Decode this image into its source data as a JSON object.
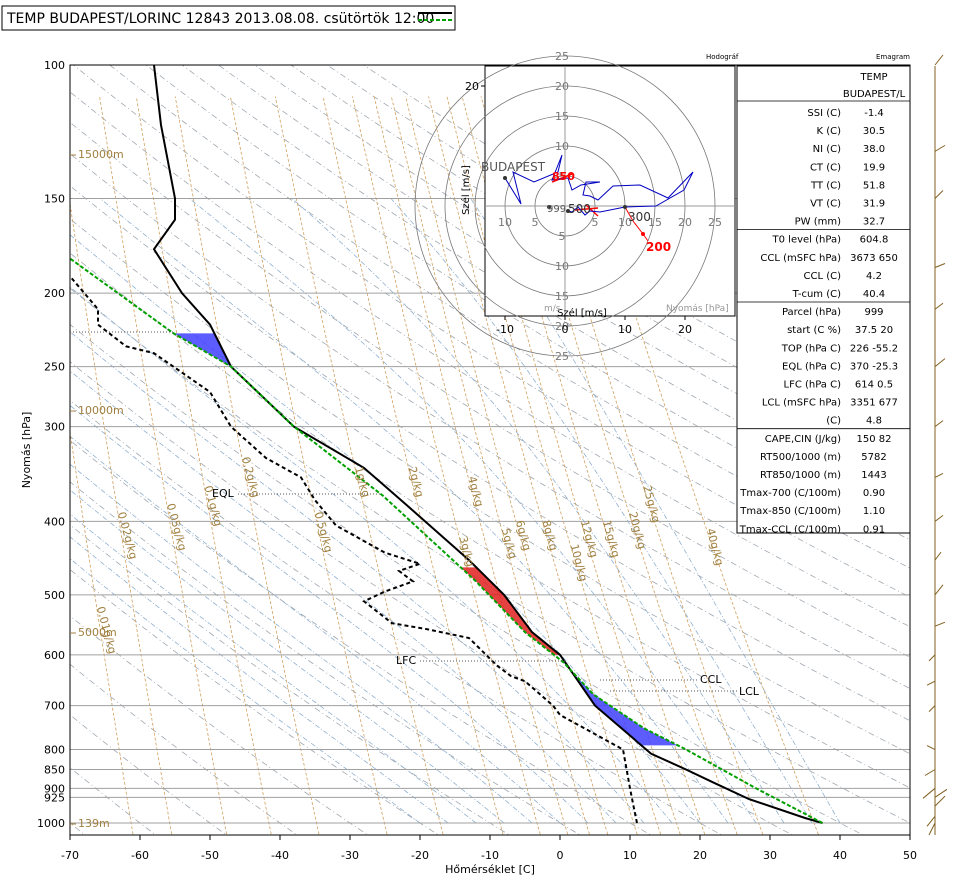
{
  "title": "TEMP BUDAPEST/LORINC 12843 2013.08.08. csütörtök 12:00",
  "axes": {
    "xlabel": "Hőmérséklet [C]",
    "ylabel": "Nyomás [hPa]",
    "x_ticks": [
      "-70",
      "-60",
      "-50",
      "-40",
      "-30",
      "-20",
      "-10",
      "0",
      "10",
      "20",
      "30",
      "40",
      "50"
    ],
    "y_ticks": [
      "100",
      "150",
      "200",
      "250",
      "300",
      "400",
      "500",
      "600",
      "700",
      "800",
      "850",
      "900",
      "925",
      "1000"
    ]
  },
  "height_labels": [
    "15000m",
    "10000m",
    "5000m",
    "139m"
  ],
  "mixing_ratio_labels": [
    "0.01g/kg",
    "0.02g/kg",
    "0.05g/kg",
    "0.1g/kg",
    "0.2g/kg",
    "0.5g/kg",
    "1g/kg",
    "2g/kg",
    "3g/kg",
    "4g/kg",
    "5g/kg",
    "6g/kg",
    "8g/kg",
    "10g/kg",
    "12g/kg",
    "15g/kg",
    "20g/kg",
    "25g/kg",
    "40g/kg"
  ],
  "level_labels": {
    "eql": "EQL",
    "lfc": "LFC",
    "ccl": "CCL",
    "lcl": "LCL"
  },
  "hodograph": {
    "title": "Hodográf",
    "station": "BUDAPEST",
    "y_axis_label": "Szél [m/s]",
    "x_axis_label": "Szél [m/s]",
    "units_label": "m/s",
    "pressure_label": "Nyomás [hPa]",
    "ring_labels": [
      "5",
      "10",
      "15",
      "20",
      "25"
    ],
    "x_ticks": [
      "-10",
      "0",
      "10",
      "20"
    ],
    "y_ticks": [
      "20"
    ],
    "level_marks": [
      "999",
      "500",
      "300",
      "200",
      "850"
    ]
  },
  "emagram_table": {
    "title": "Emagram",
    "header": [
      "TEMP",
      "BUDAPEST/L"
    ],
    "rows": [
      [
        "SSI (C)",
        "-1.4"
      ],
      [
        "K (C)",
        "30.5"
      ],
      [
        "NI (C)",
        "38.0"
      ],
      [
        "CT (C)",
        "19.9"
      ],
      [
        "TT (C)",
        "51.8"
      ],
      [
        "VT (C)",
        "31.9"
      ],
      [
        "PW (mm)",
        "32.7"
      ],
      [
        "T0 level (hPa)",
        "604.8"
      ],
      [
        "CCL (mSFC hPa)",
        "3673 650"
      ],
      [
        "CCL (C)",
        "4.2"
      ],
      [
        "T-cum (C)",
        "40.4"
      ],
      [
        "Parcel (hPa)",
        "999"
      ],
      [
        "start (C %)",
        "37.5 20"
      ],
      [
        "TOP (hPa C)",
        "226 -55.2"
      ],
      [
        "EQL (hPa C)",
        "370 -25.3"
      ],
      [
        "LFC (hPa C)",
        "614 0.5"
      ],
      [
        "LCL (mSFC hPa)",
        "3351 677"
      ],
      [
        "(C)",
        "4.8"
      ],
      [
        "CAPE,CIN (J/kg)",
        "150 82"
      ],
      [
        "RT500/1000 (m)",
        "5782"
      ],
      [
        "RT850/1000 (m)",
        "1443"
      ],
      [
        "Tmax-700 (C/100m)",
        "0.90"
      ],
      [
        "Tmax-850 (C/100m)",
        "1.10"
      ],
      [
        "Tmax-CCL (C/100m)",
        "0.91"
      ]
    ]
  },
  "colors": {
    "temperature": "#000000",
    "dewpoint": "#000000",
    "parcel": "#00a000",
    "cape": "#4040ff",
    "cin": "#e02020",
    "isobar": "#a0a0a0",
    "mixing_ratio": "#d0a060",
    "dry_adiabat": "#a0a8b0",
    "moist_adiabat": "#90b0d0",
    "wind_barb": "#806020",
    "hodo_line": "#0000c0",
    "hodo_mark": "#ff0000"
  },
  "chart_data": {
    "type": "line",
    "title": "TEMP BUDAPEST/LORINC 12843 2013.08.08. csütörtök 12:00",
    "xlabel": "Hőmérséklet [C]",
    "ylabel": "Nyomás [hPa]",
    "xlim": [
      -70,
      50
    ],
    "ylim": [
      1000,
      100
    ],
    "y_scale": "log",
    "series": [
      {
        "points": [
          [
            37.5,
            1000
          ],
          [
            35,
            985
          ],
          [
            27,
            930
          ],
          [
            22,
            885
          ],
          [
            18,
            850
          ],
          [
            13,
            810
          ],
          [
            5,
            700
          ],
          [
            0,
            600
          ],
          [
            -4,
            560
          ],
          [
            -8,
            500
          ],
          [
            -13,
            450
          ],
          [
            -22,
            380
          ],
          [
            -28,
            340
          ],
          [
            -38,
            300
          ],
          [
            -47,
            250
          ],
          [
            -50,
            220
          ],
          [
            -54,
            200
          ],
          [
            -58,
            175
          ],
          [
            -55,
            160
          ],
          [
            -55,
            150
          ],
          [
            -57,
            120
          ],
          [
            -58,
            100
          ]
        ]
      },
      {
        "points": [
          [
            11,
            1000
          ],
          [
            10.5,
            950
          ],
          [
            10,
            900
          ],
          [
            9,
            800
          ],
          [
            0,
            720
          ],
          [
            -1,
            700
          ],
          [
            -5,
            650
          ],
          [
            -7,
            640
          ],
          [
            -9,
            620
          ],
          [
            -13,
            570
          ],
          [
            -19,
            555
          ],
          [
            -24,
            545
          ],
          [
            -28,
            510
          ],
          [
            -25,
            495
          ],
          [
            -21,
            480
          ],
          [
            -23,
            465
          ],
          [
            -20,
            455
          ],
          [
            -25,
            440
          ],
          [
            -32,
            405
          ],
          [
            -35,
            375
          ],
          [
            -37,
            350
          ],
          [
            -42,
            330
          ],
          [
            -47,
            300
          ],
          [
            -50,
            270
          ],
          [
            -58,
            240
          ],
          [
            -62,
            235
          ],
          [
            -66,
            220
          ],
          [
            -66,
            210
          ],
          [
            -70,
            190
          ]
        ]
      },
      {
        "points": [
          [
            37.5,
            1000
          ],
          [
            28,
            900
          ],
          [
            18,
            800
          ],
          [
            12,
            750
          ],
          [
            4.8,
            677
          ],
          [
            0.5,
            614
          ],
          [
            -5,
            560
          ],
          [
            -12,
            480
          ],
          [
            -25.3,
            370
          ],
          [
            -38,
            300
          ],
          [
            -47,
            250
          ],
          [
            -55.2,
            226
          ],
          [
            -70,
            180
          ]
        ]
      }
    ]
  }
}
